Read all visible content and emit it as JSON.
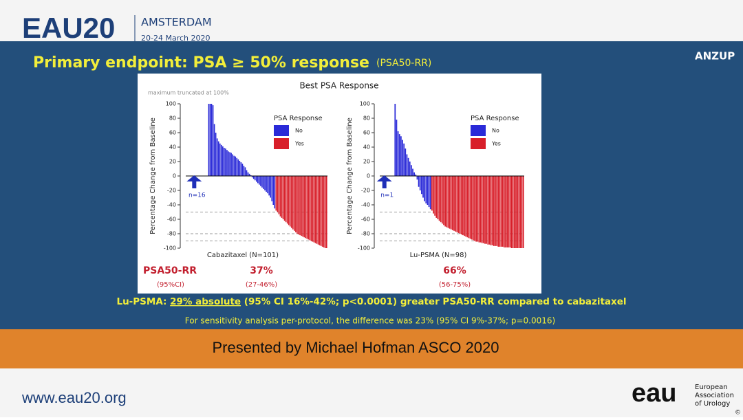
{
  "header": {
    "logo": "EAU20",
    "city": "AMSTERDAM",
    "dates": "20-24 March 2020"
  },
  "slide": {
    "title": "Primary endpoint: PSA ≥ 50% response",
    "title_sub": "(PSA50-RR)",
    "brand": "ANZUP",
    "panel_title": "Best PSA Response",
    "panel_note": "maximum truncated at 100%",
    "results": {
      "label": "PSA50-RR",
      "label_sub": "(95%CI)",
      "left": "37%",
      "left_ci": "(27-46%)",
      "right": "66%",
      "right_ci": "(56-75%)"
    },
    "conclusion_prefix": "Lu-PSMA: ",
    "conclusion_underlined": "29% absolute",
    "conclusion_rest": " (95% CI 16%-42%; p<0.0001) greater PSA50-RR compared to cabazitaxel",
    "sensitivity": "For sensitivity analysis per-protocol, the difference was 23% (95% CI 9%-37%; p=0.0016)"
  },
  "banner": "Presented by Michael Hofman ASCO 2020",
  "footer": {
    "url": "www.eau20.org",
    "logo": "eau",
    "org": [
      "European",
      "Association",
      "of Urology"
    ],
    "copyright": "©"
  },
  "chart_data": [
    {
      "type": "waterfall",
      "x_label": "Cabazitaxel (N=101)",
      "y_label": "Percentage Change from Baseline",
      "legend_title": "PSA Response",
      "annotation": "n=16",
      "ylim": [
        -100,
        100
      ],
      "yticks": [
        -100,
        -80,
        -60,
        -40,
        -20,
        0,
        20,
        40,
        60,
        80,
        100
      ],
      "reference_lines": [
        -50,
        -80,
        -90
      ],
      "series": [
        {
          "name": "No",
          "color": "#2a2ad8",
          "values": [
            null,
            null,
            null,
            null,
            null,
            null,
            null,
            null,
            null,
            null,
            null,
            null,
            null,
            null,
            null,
            null,
            100,
            100,
            100,
            98,
            72,
            60,
            52,
            48,
            45,
            43,
            41,
            39,
            38,
            36,
            34,
            33,
            32,
            30,
            28,
            27,
            25,
            23,
            21,
            19,
            17,
            14,
            12,
            8,
            5,
            3,
            1,
            -2,
            -4,
            -6,
            -8,
            -10,
            -12,
            -14,
            -16,
            -18,
            -20,
            -22,
            -24,
            -27,
            -30,
            -35,
            -40,
            -45
          ]
        },
        {
          "name": "Yes",
          "color": "#d81f2a",
          "values": [
            -48,
            -50,
            -53,
            -56,
            -58,
            -60,
            -62,
            -64,
            -66,
            -68,
            -70,
            -72,
            -74,
            -76,
            -78,
            -80,
            -81,
            -82,
            -83,
            -84,
            -85,
            -86,
            -87,
            -88,
            -89,
            -90,
            -91,
            -92,
            -93,
            -94,
            -95,
            -96,
            -97,
            -98,
            -99,
            -100,
            -100
          ]
        }
      ]
    },
    {
      "type": "waterfall",
      "x_label": "Lu-PSMA  (N=98)",
      "y_label": "Percentage Change from Baseline",
      "legend_title": "PSA Response",
      "annotation": "n=1",
      "ylim": [
        -100,
        100
      ],
      "yticks": [
        -100,
        -80,
        -60,
        -40,
        -20,
        0,
        20,
        40,
        60,
        80,
        100
      ],
      "reference_lines": [
        -50,
        -80,
        -90
      ],
      "series": [
        {
          "name": "No",
          "color": "#2a2ad8",
          "values": [
            null,
            null,
            null,
            null,
            null,
            null,
            null,
            null,
            null,
            null,
            100,
            78,
            62,
            58,
            55,
            50,
            45,
            38,
            30,
            25,
            20,
            15,
            10,
            5,
            2,
            -5,
            -15,
            -20,
            -25,
            -30,
            -35,
            -38,
            -40,
            -43,
            -46
          ]
        },
        {
          "name": "Yes",
          "color": "#d81f2a",
          "values": [
            -48,
            -52,
            -55,
            -58,
            -60,
            -62,
            -64,
            -66,
            -68,
            -70,
            -71,
            -72,
            -73,
            -74,
            -75,
            -76,
            -77,
            -78,
            -79,
            -80,
            -81,
            -82,
            -83,
            -84,
            -85,
            -86,
            -87,
            -88,
            -89,
            -90,
            -91,
            -91,
            -92,
            -92,
            -93,
            -93,
            -94,
            -94,
            -95,
            -95,
            -96,
            -96,
            -97,
            -97,
            -97,
            -98,
            -98,
            -98,
            -98,
            -99,
            -99,
            -99,
            -99,
            -99,
            -100,
            -100,
            -100,
            -100,
            -100,
            -100,
            -100,
            -100,
            -100
          ]
        }
      ]
    }
  ]
}
